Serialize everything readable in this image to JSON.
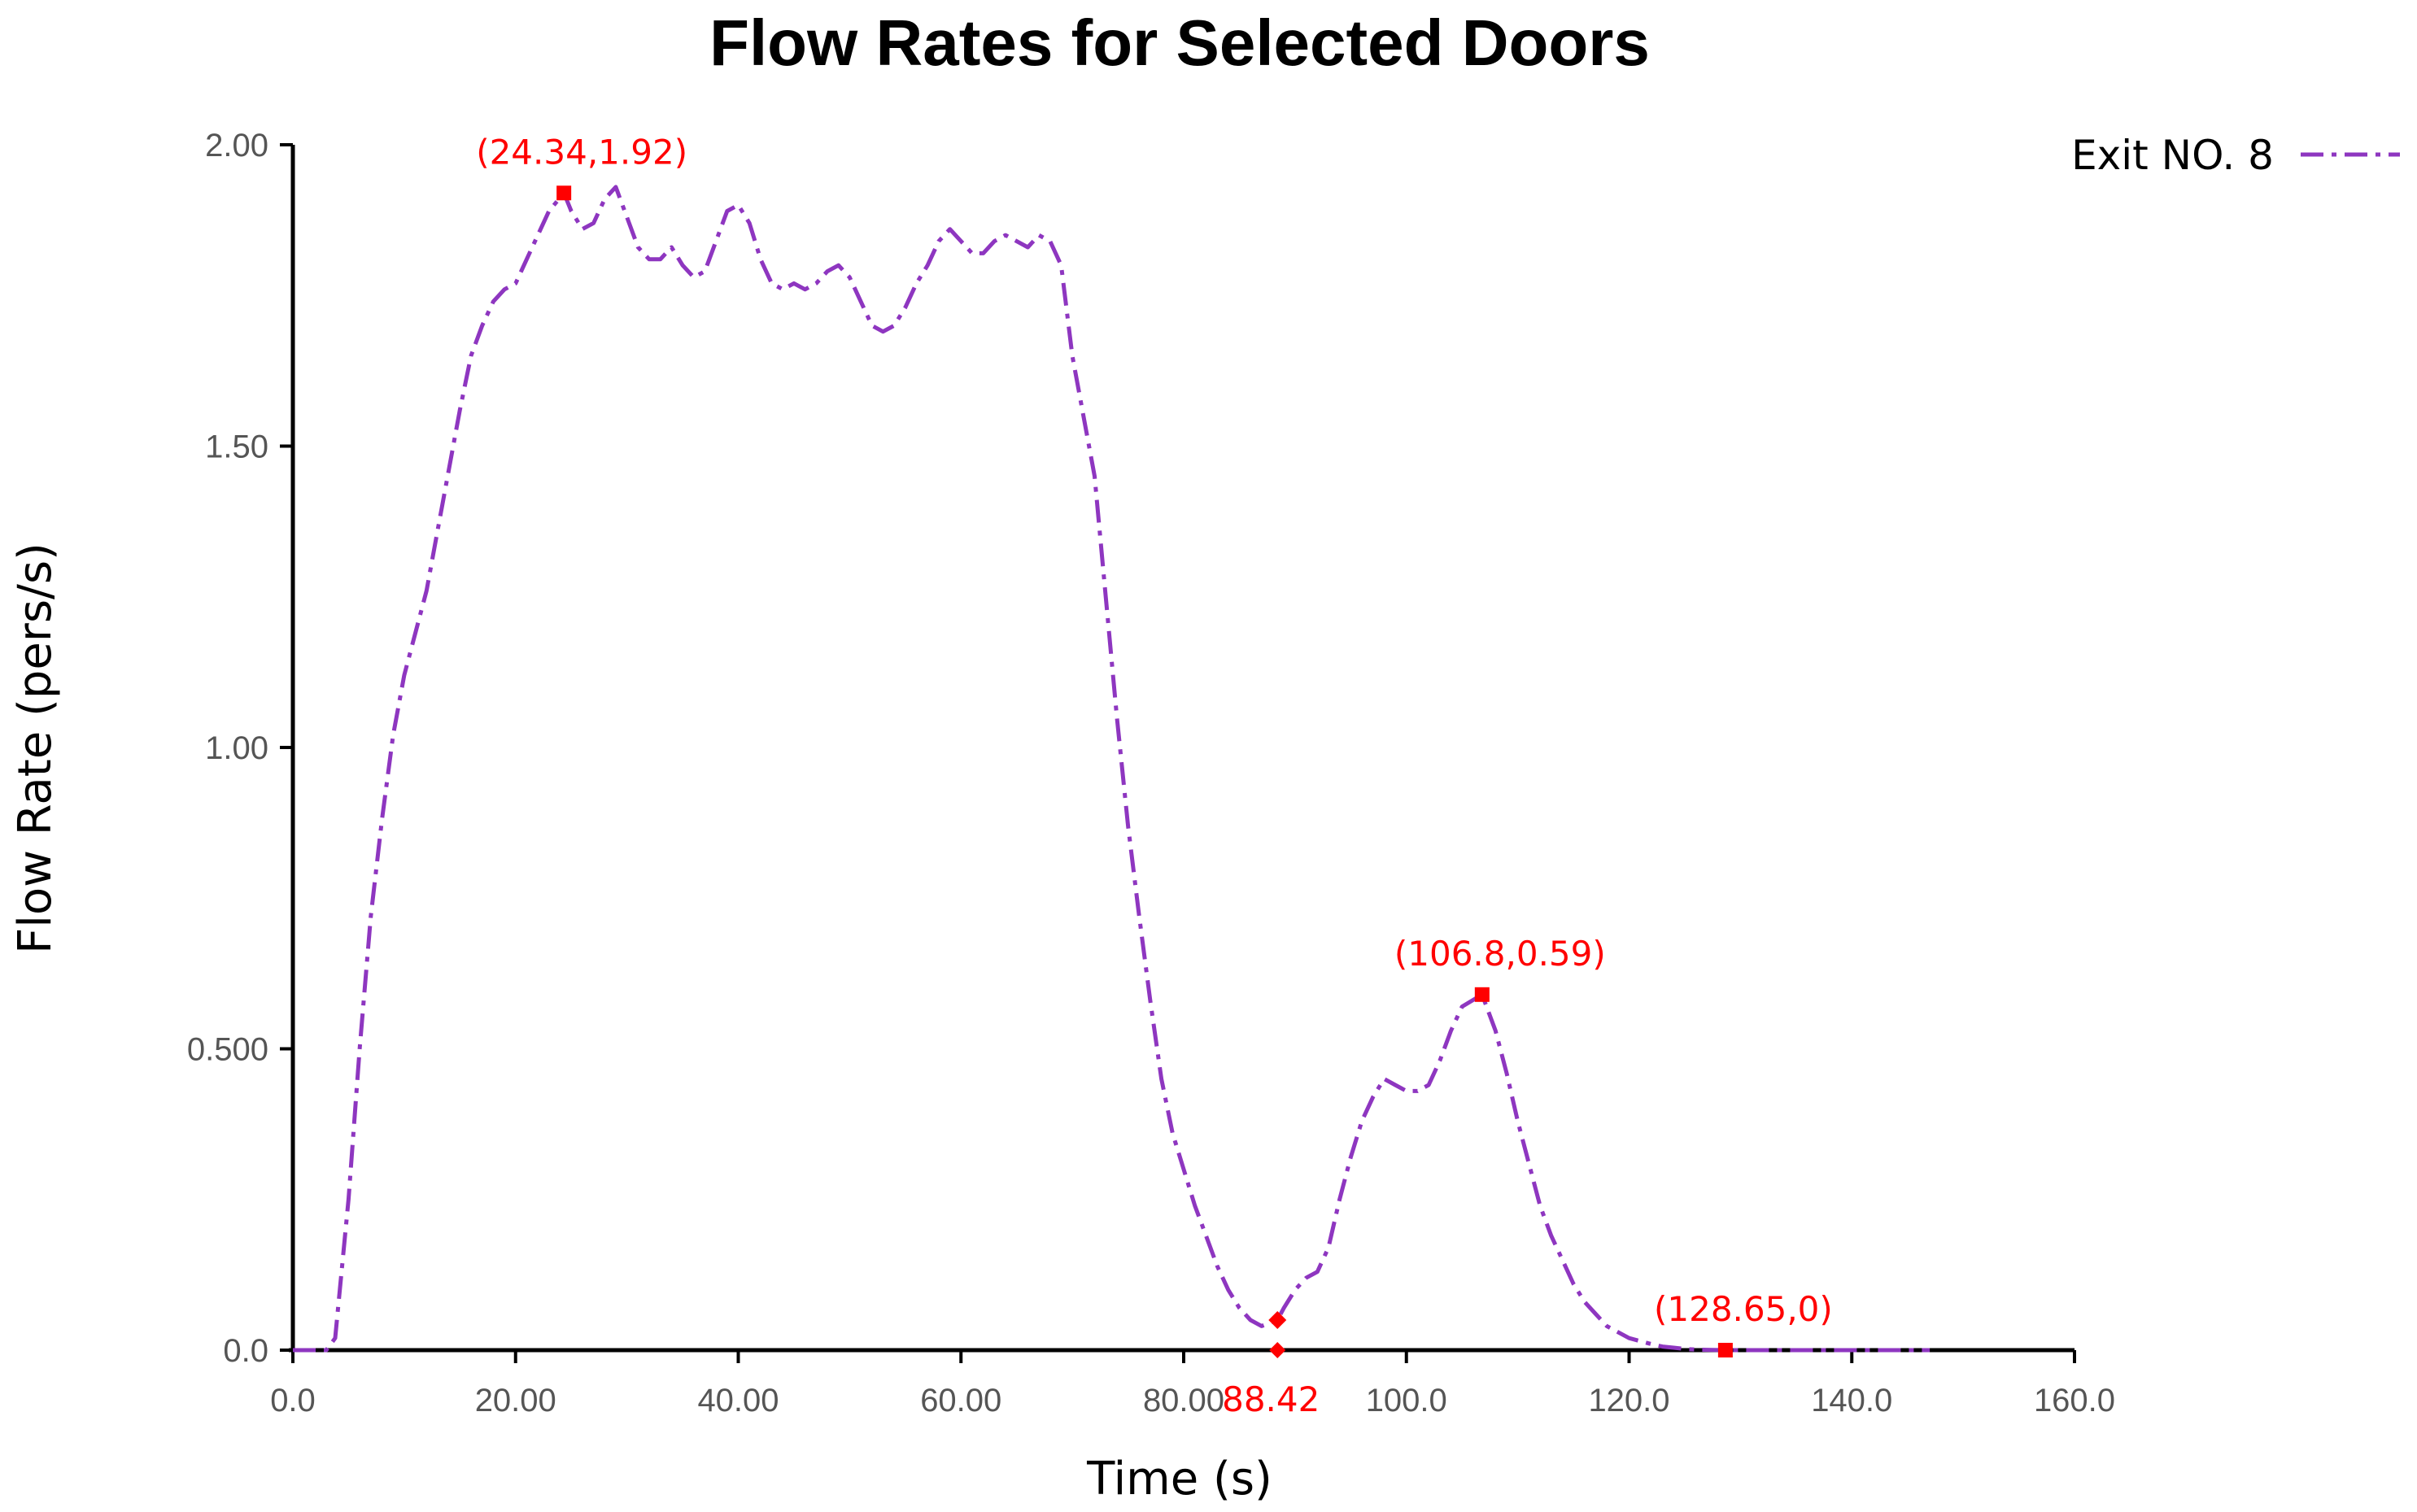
{
  "chart_data": {
    "type": "line",
    "title": "Flow Rates for Selected Doors",
    "xlabel": "Time (s)",
    "ylabel": "Flow Rate (pers/s)",
    "xlim": [
      0,
      160
    ],
    "ylim": [
      0,
      2.0
    ],
    "x_ticks": [
      0,
      20,
      40,
      60,
      80,
      100,
      120,
      140,
      160
    ],
    "x_tick_labels": [
      "0.0",
      "20.00",
      "40.00",
      "60.00",
      "80.00",
      "100.0",
      "120.0",
      "140.0",
      "160.0"
    ],
    "y_ticks": [
      0,
      0.5,
      1.0,
      1.5,
      2.0
    ],
    "y_tick_labels": [
      "0.0",
      "0.500",
      "1.00",
      "1.50",
      "2.00"
    ],
    "legend_position": "top-right",
    "series": [
      {
        "name": "Exit NO. 8",
        "color": "#8e36c0",
        "line_style": "dash-dot",
        "x": [
          0,
          3,
          3.8,
          5,
          6,
          7,
          8,
          9,
          10,
          11,
          12,
          13,
          14,
          15,
          16,
          17,
          18,
          19,
          20,
          21,
          22,
          23,
          24.34,
          25,
          26,
          27,
          28,
          29,
          30,
          31,
          32,
          33,
          34,
          35,
          36,
          37,
          38,
          39,
          40,
          41,
          42,
          43,
          44,
          45,
          46,
          47,
          48,
          49,
          50,
          51,
          52,
          53,
          54,
          55,
          56,
          57,
          58,
          59,
          60,
          61,
          62,
          63,
          64,
          65,
          66,
          67,
          68,
          69,
          70,
          71,
          72,
          73,
          74,
          75,
          76,
          77,
          78,
          79,
          80,
          81,
          82,
          83,
          84,
          85,
          86,
          87,
          88.42,
          89,
          90,
          91,
          92,
          93,
          94,
          95,
          96,
          97,
          98,
          99,
          100,
          101,
          102,
          103,
          104,
          105,
          106.8,
          108,
          109,
          110,
          111,
          112,
          113,
          114,
          115,
          116,
          117,
          118,
          119,
          120,
          121,
          122,
          123,
          124,
          125,
          126,
          127,
          128.65,
          130,
          135,
          140,
          145,
          147
        ],
        "y": [
          0,
          0,
          0.02,
          0.25,
          0.5,
          0.72,
          0.88,
          1.02,
          1.12,
          1.19,
          1.26,
          1.36,
          1.46,
          1.56,
          1.65,
          1.7,
          1.74,
          1.76,
          1.77,
          1.81,
          1.85,
          1.89,
          1.92,
          1.89,
          1.86,
          1.87,
          1.91,
          1.93,
          1.88,
          1.83,
          1.81,
          1.81,
          1.83,
          1.8,
          1.78,
          1.79,
          1.84,
          1.89,
          1.9,
          1.87,
          1.81,
          1.77,
          1.76,
          1.77,
          1.76,
          1.77,
          1.79,
          1.8,
          1.78,
          1.74,
          1.7,
          1.69,
          1.7,
          1.73,
          1.77,
          1.8,
          1.84,
          1.86,
          1.84,
          1.82,
          1.82,
          1.84,
          1.85,
          1.84,
          1.83,
          1.85,
          1.84,
          1.8,
          1.65,
          1.55,
          1.45,
          1.25,
          1.05,
          0.87,
          0.72,
          0.58,
          0.45,
          0.36,
          0.3,
          0.24,
          0.19,
          0.14,
          0.1,
          0.07,
          0.05,
          0.04,
          0.05,
          0.07,
          0.1,
          0.12,
          0.13,
          0.17,
          0.25,
          0.32,
          0.38,
          0.42,
          0.45,
          0.44,
          0.43,
          0.43,
          0.44,
          0.48,
          0.53,
          0.57,
          0.59,
          0.53,
          0.46,
          0.38,
          0.31,
          0.24,
          0.19,
          0.15,
          0.11,
          0.08,
          0.06,
          0.04,
          0.03,
          0.02,
          0.015,
          0.01,
          0.006,
          0.004,
          0.002,
          0.001,
          0.0005,
          0,
          0,
          0,
          0,
          0,
          0
        ]
      }
    ],
    "annotations": [
      {
        "text": "(24.34,1.92)",
        "x": 24.34,
        "y": 1.92,
        "marker": "square",
        "label_position": "above"
      },
      {
        "text": "88.42",
        "x": 88.42,
        "y": 0.05,
        "marker": "diamond",
        "label_position": "below-axis"
      },
      {
        "text": "(106.8,0.59)",
        "x": 106.8,
        "y": 0.59,
        "marker": "square",
        "label_position": "above"
      },
      {
        "text": "(128.65,0)",
        "x": 128.65,
        "y": 0,
        "marker": "square",
        "label_position": "above"
      }
    ],
    "annotation_color": "#ff0000",
    "grid": false
  }
}
